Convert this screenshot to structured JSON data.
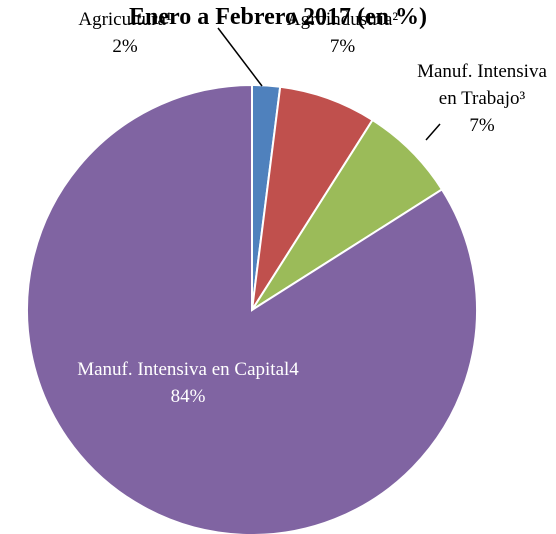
{
  "chart_data": {
    "type": "pie",
    "title": "Enero a Febrero 2017 (en %)",
    "categories": [
      "Agricultura¹",
      "Agroindustria²",
      "Manuf. Intensiva en Trabajo³",
      "Manuf. Intensiva en Capital4"
    ],
    "values": [
      2,
      7,
      7,
      84
    ],
    "value_labels": [
      "2%",
      "7%",
      "7%",
      "84%"
    ],
    "colors": [
      "#4f81bd",
      "#c0504d",
      "#9bbb59",
      "#8064a2"
    ]
  }
}
